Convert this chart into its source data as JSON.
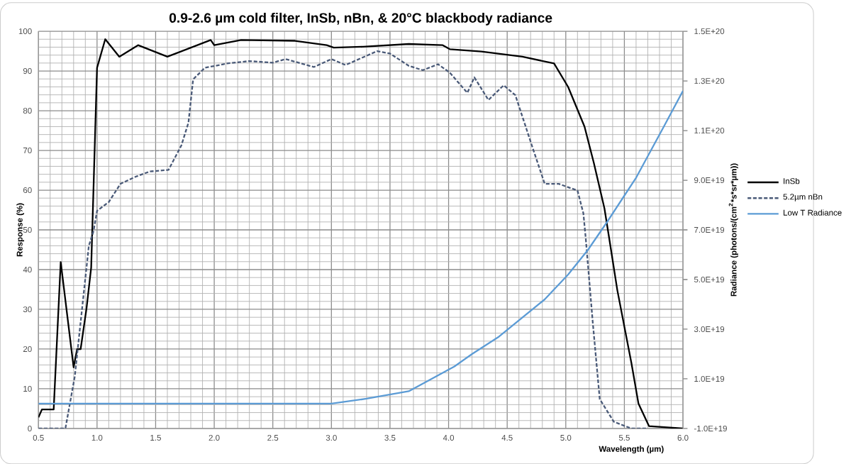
{
  "chart_data": {
    "type": "line",
    "title": "0.9-2.6 µm cold filter, InSb, nBn, & 20°C blackbody radiance",
    "xlabel": "Wavelength (µm)",
    "ylabel": "Response (%)",
    "y2label": "Radiance (photons/(cm$^{2}$*s*sr*µm))",
    "xlim": [
      0.5,
      6.0
    ],
    "ylim": [
      0,
      100
    ],
    "y2lim": [
      -1e+19,
      1.5e+20
    ],
    "xticks": [
      0.5,
      {
        "value": 1,
        "label": "1.0"
      },
      1.5,
      {
        "value": 2,
        "label": "2.0"
      },
      2.5,
      {
        "value": 3,
        "label": "3.0"
      },
      3.5,
      {
        "value": 4,
        "label": "4.0"
      },
      4.5,
      {
        "value": 5,
        "label": "5.0"
      },
      5.5,
      {
        "value": 6,
        "label": "6.0"
      }
    ],
    "yticks": [
      0,
      10,
      20,
      30,
      40,
      50,
      60,
      70,
      80,
      90,
      100
    ],
    "y2ticks": [
      {
        "value": -1e+19,
        "label": "-1.0E+19"
      },
      {
        "value": 1e+19,
        "label": "1.0E+19"
      },
      {
        "value": 3e+19,
        "label": "3.0E+19"
      },
      {
        "value": 5e+19,
        "label": "5.0E+19"
      },
      {
        "value": 7e+19,
        "label": "7.0E+19"
      },
      {
        "value": 9e+19,
        "label": "9.0E+19"
      },
      {
        "value": 1.1e+20,
        "label": "1.1E+20"
      },
      {
        "value": 1.3e+20,
        "label": "1.3E+20"
      },
      {
        "value": 1.5e+20,
        "label": "1.5E+20"
      }
    ],
    "grid": true,
    "legend": "right",
    "marker": "none",
    "series": [
      {
        "name": "InSb",
        "color": "#000000",
        "line_style": "solid",
        "x": [
          0.5,
          0.53,
          0.63,
          0.69,
          0.8,
          0.83,
          0.86,
          0.91,
          0.95,
          1.0,
          1.07,
          1.19,
          1.35,
          1.6,
          1.97,
          2.0,
          2.23,
          2.69,
          2.96,
          3.02,
          3.27,
          3.66,
          3.95,
          4.01,
          4.28,
          4.63,
          4.9,
          5.02,
          5.16,
          5.24,
          5.33,
          5.37,
          5.44,
          5.56,
          5.62,
          5.71,
          6.0
        ],
        "values": [
          2.8,
          4.8,
          4.8,
          41.9,
          15.4,
          20,
          20,
          30.2,
          40.5,
          90.8,
          98,
          93.6,
          96.5,
          93.6,
          97.8,
          96.5,
          97.8,
          97.6,
          96.5,
          95.9,
          96.1,
          96.8,
          96.5,
          95.5,
          94.9,
          93.6,
          91.9,
          86,
          76,
          66.8,
          55.4,
          48,
          34.8,
          16.5,
          6.3,
          0.6,
          0
        ]
      },
      {
        "name": "5.2µm nBn",
        "color": "#4a5a78",
        "line_style": "dashed",
        "x": [
          0.5,
          0.73,
          0.81,
          0.93,
          0.97,
          1.0,
          1.1,
          1.2,
          1.33,
          1.45,
          1.61,
          1.72,
          1.78,
          1.82,
          1.92,
          2.11,
          2.3,
          2.5,
          2.61,
          2.85,
          3.0,
          3.12,
          3.39,
          3.5,
          3.66,
          3.78,
          3.91,
          4.01,
          4.16,
          4.22,
          4.34,
          4.47,
          4.57,
          4.71,
          4.82,
          4.94,
          5.1,
          5.15,
          5.17,
          5.23,
          5.29,
          5.41,
          5.56,
          5.7
        ],
        "values": [
          0,
          0,
          13.1,
          46,
          49.7,
          54.8,
          57,
          61.6,
          63.4,
          64.7,
          65.1,
          71.3,
          77,
          87.9,
          90.8,
          91.9,
          92.5,
          92.1,
          93,
          91,
          93,
          91.5,
          95,
          94.4,
          91.3,
          90.2,
          91.7,
          89.6,
          84.5,
          88.4,
          82.7,
          86.4,
          83.9,
          71.3,
          61.6,
          61.6,
          59.9,
          54.2,
          48,
          26.8,
          7.4,
          1.7,
          0,
          0
        ]
      },
      {
        "name": "Low T Radiance",
        "color": "#5b9bd5",
        "line_style": "solid",
        "axis": "y2",
        "x": [
          0.5,
          2.5,
          3.0,
          3.3,
          3.66,
          4.05,
          4.2,
          4.43,
          4.82,
          5.02,
          5.19,
          5.35,
          5.6,
          5.83,
          6.0
        ],
        "values": [
          0,
          0,
          0,
          2e+18,
          5e+18,
          1.5e+19,
          2e+19,
          2.7e+19,
          4.2e+19,
          5.2e+19,
          6.2e+19,
          7.3e+19,
          9.1e+19,
          1.11e+20,
          1.26e+20
        ]
      }
    ]
  }
}
